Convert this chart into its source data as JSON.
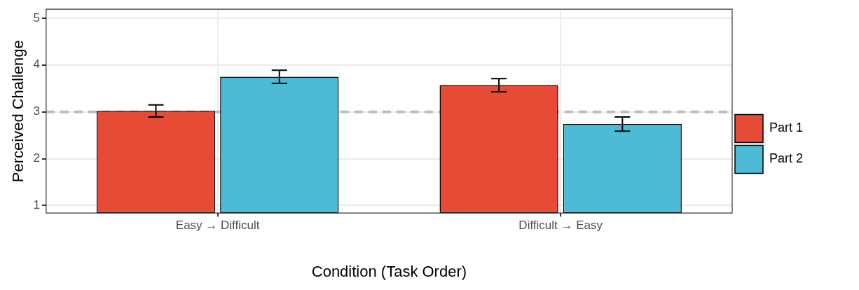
{
  "chart_data": {
    "type": "bar",
    "xlabel": "Condition (Task Order)",
    "ylabel": "Perceived Challenge",
    "categories": [
      "Easy → Difficult",
      "Difficult → Easy"
    ],
    "series": [
      {
        "name": "Part 1",
        "color": "#e64b35",
        "values": [
          3.02,
          3.57
        ],
        "errors": [
          0.13,
          0.14
        ]
      },
      {
        "name": "Part 2",
        "color": "#4dbbd5",
        "values": [
          3.75,
          2.74
        ],
        "errors": [
          0.14,
          0.15
        ]
      }
    ],
    "ylim": [
      0.84,
      5.19
    ],
    "yticks": [
      1,
      2,
      3,
      4,
      5
    ],
    "grid": true,
    "legend": "right",
    "ref_lines": [
      {
        "axis": "y",
        "value": 3,
        "color": "#bebebe",
        "line_style": "dashed"
      }
    ]
  }
}
